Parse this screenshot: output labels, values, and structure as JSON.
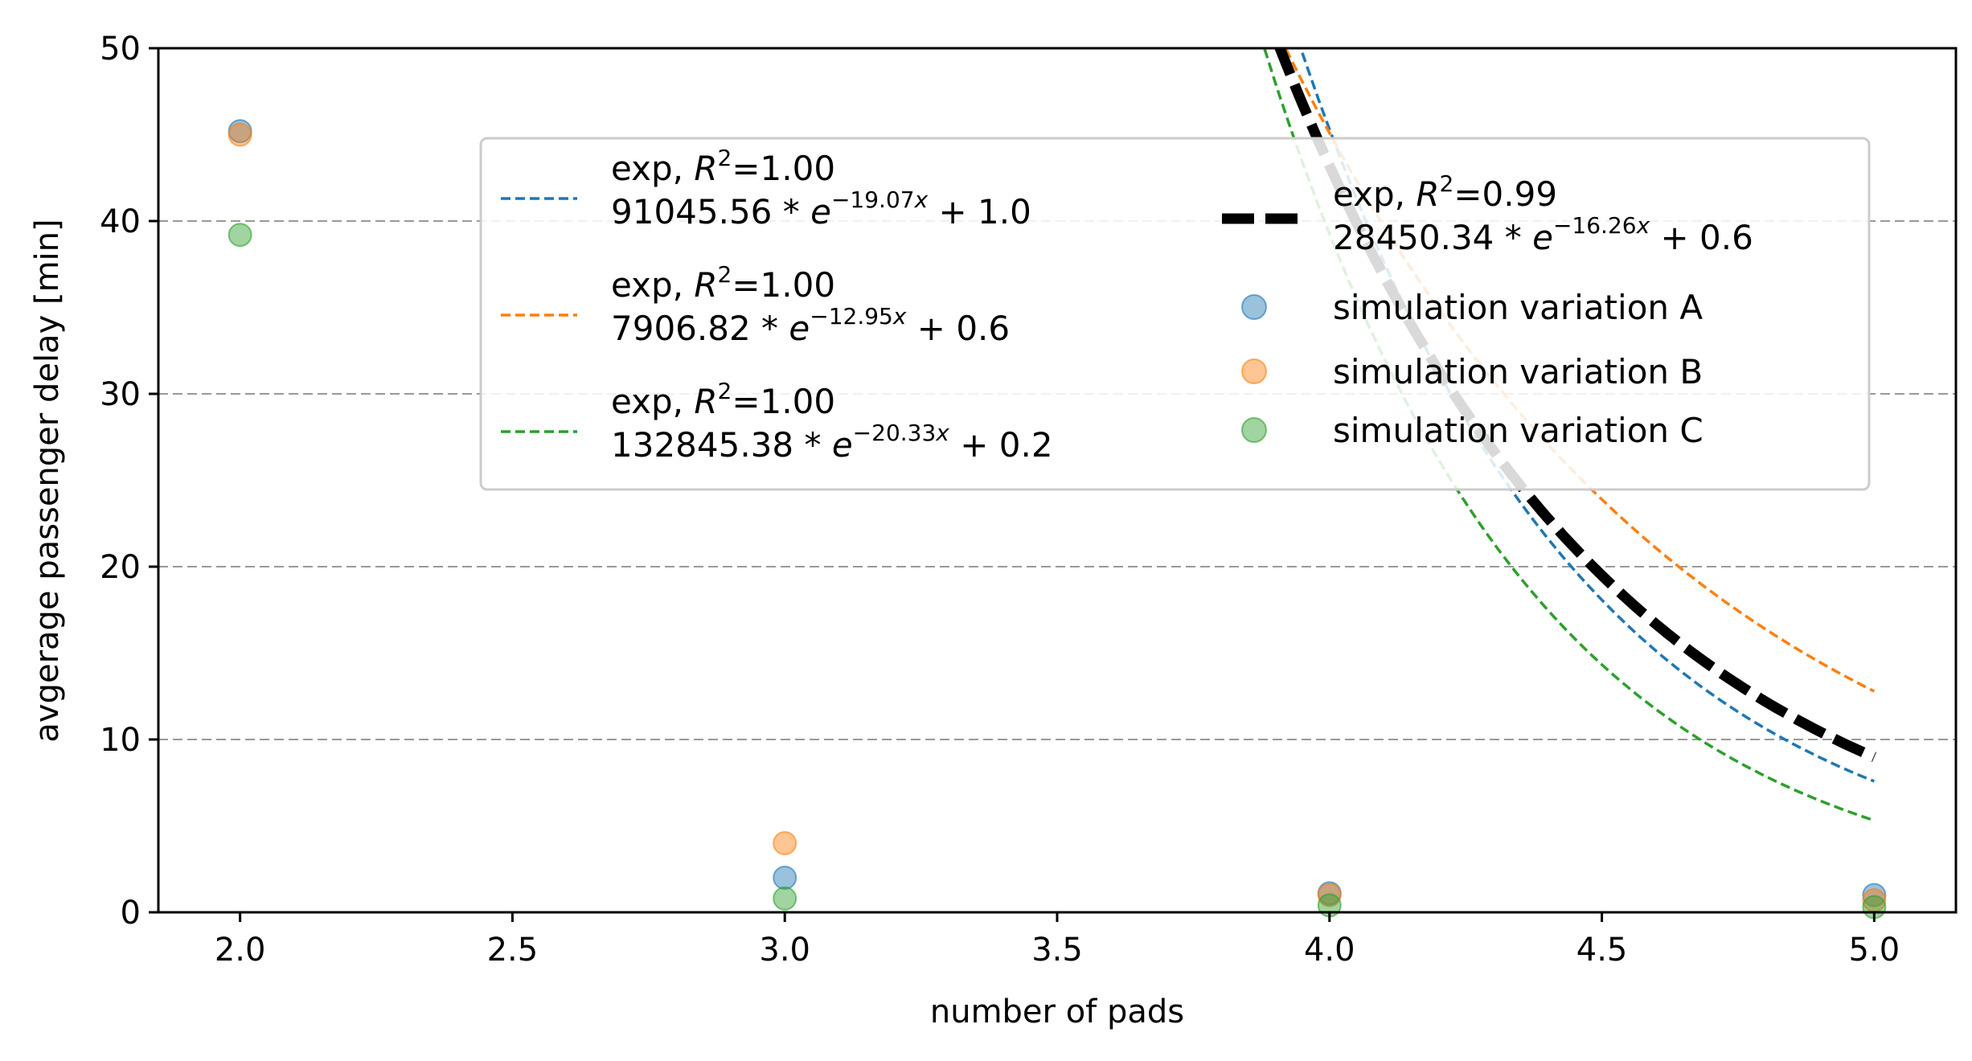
{
  "chart_data": {
    "type": "scatter",
    "title": "",
    "xlabel": "number of pads",
    "ylabel": "avgerage passenger delay [min]",
    "xlim": [
      1.85,
      5.15
    ],
    "ylim": [
      0,
      50
    ],
    "xticks": [
      2.0,
      2.5,
      3.0,
      3.5,
      4.0,
      4.5,
      5.0
    ],
    "xtick_labels": [
      "2.0",
      "2.5",
      "3.0",
      "3.5",
      "4.0",
      "4.5",
      "5.0"
    ],
    "yticks": [
      0,
      10,
      20,
      30,
      40,
      50
    ],
    "ytick_labels": [
      "0",
      "10",
      "20",
      "30",
      "40",
      "50"
    ],
    "grid": "horizontal dashed",
    "legend_position": "top-right",
    "scatter_series": [
      {
        "name": "simulation variation A",
        "color": "#1f77b4",
        "x": [
          2,
          3,
          4,
          5
        ],
        "y": [
          45.2,
          2.0,
          1.1,
          1.0
        ]
      },
      {
        "name": "simulation variation B",
        "color": "#ff7f0e",
        "x": [
          2,
          3,
          4,
          5
        ],
        "y": [
          45.0,
          4.0,
          1.0,
          0.7
        ]
      },
      {
        "name": "simulation variation C",
        "color": "#2ca02c",
        "x": [
          2,
          3,
          4,
          5
        ],
        "y": [
          39.2,
          0.8,
          0.4,
          0.3
        ]
      }
    ],
    "fit_series": [
      {
        "kind": "exp",
        "r2_label": "1.00",
        "a": 91045.56,
        "a_label": "91045.56",
        "k": 19.07,
        "exp_label": "−19.07",
        "c": 1.0,
        "c_label": "1.0",
        "color": "#1f77b4",
        "style": "dashed"
      },
      {
        "kind": "exp",
        "r2_label": "1.00",
        "a": 7906.82,
        "a_label": "7906.82",
        "k": 12.95,
        "exp_label": "−12.95",
        "c": 0.6,
        "c_label": "0.6",
        "color": "#ff7f0e",
        "style": "dashed"
      },
      {
        "kind": "exp",
        "r2_label": "1.00",
        "a": 132845.38,
        "a_label": "132845.38",
        "k": 20.33,
        "exp_label": "−20.33",
        "c": 0.2,
        "c_label": "0.2",
        "color": "#2ca02c",
        "style": "dashed"
      },
      {
        "kind": "exp",
        "r2_label": "0.99",
        "a": 28450.34,
        "a_label": "28450.34",
        "k": 16.26,
        "exp_label": "−16.26",
        "c": 0.6,
        "c_label": "0.6",
        "color": "#000000",
        "style": "thick-dashed"
      }
    ],
    "fit_x_range": [
      2.0,
      5.0
    ],
    "fit_x_scale": 0.1
  }
}
